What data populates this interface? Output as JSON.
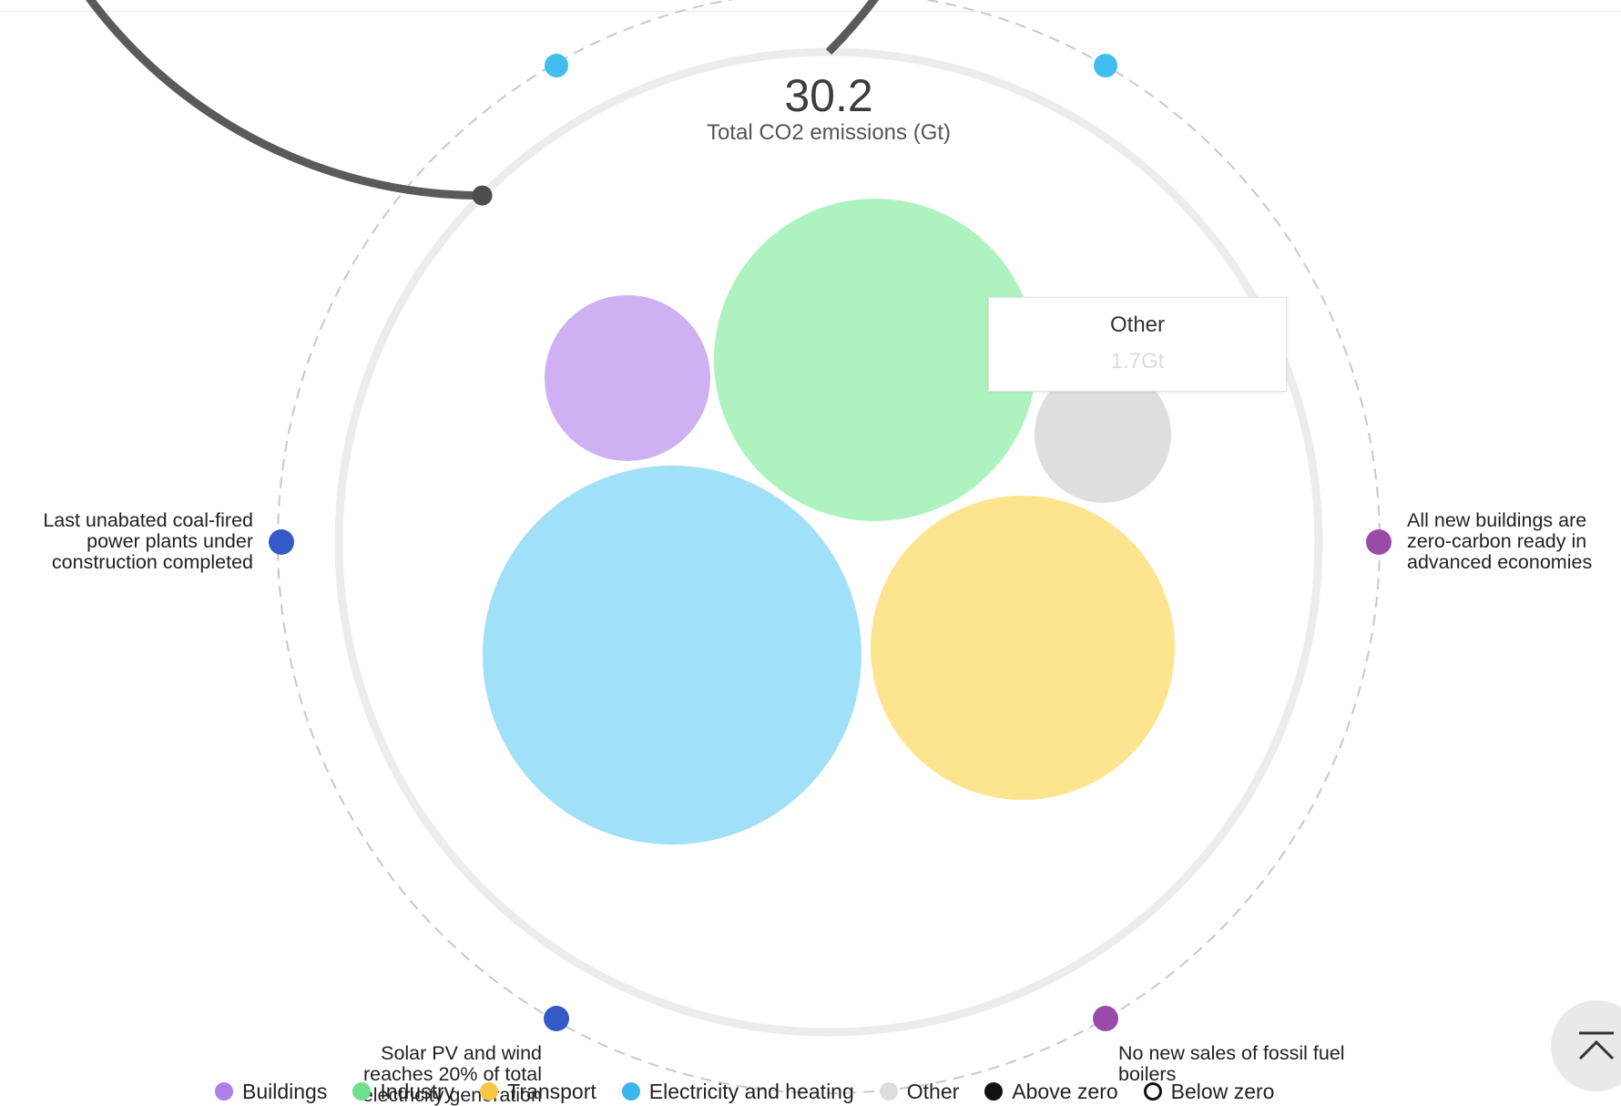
{
  "chart_data": {
    "type": "bubble",
    "total": {
      "value": "30.2",
      "label": "Total CO2 emissions (Gt)"
    },
    "progress_fraction": 0.875,
    "bubbles": [
      {
        "name": "Electricity and heating",
        "color": "#a0e0f8"
      },
      {
        "name": "Industry",
        "color": "#aef3bf"
      },
      {
        "name": "Transport",
        "color": "#fde48f"
      },
      {
        "name": "Buildings",
        "color": "#cfb0f3"
      },
      {
        "name": "Other",
        "color": "#dedede",
        "value_label": "1.7Gt"
      }
    ],
    "milestones": [
      {
        "text": "Last unabated coal-fired power plants under construction completed",
        "color": "#3559c6"
      },
      {
        "text": "All new buildings are zero-carbon ready in advanced economies",
        "color": "#9a4aa8"
      },
      {
        "text": "Solar PV and wind reaches 20% of total electricity generation",
        "color": "#3559c6"
      },
      {
        "text": "No new sales of fossil fuel boilers",
        "color": "#9a4aa8"
      }
    ],
    "marker_colors": {
      "top": "#42bdf0"
    },
    "tooltip": {
      "title": "Other",
      "value": "1.7Gt"
    },
    "legend": [
      {
        "label": "Buildings",
        "color": "#b07ee8",
        "style": "filled"
      },
      {
        "label": "Industry",
        "color": "#6fe08d",
        "style": "filled"
      },
      {
        "label": "Transport",
        "color": "#f7c744",
        "style": "filled"
      },
      {
        "label": "Electricity and heating",
        "color": "#3cb6ee",
        "style": "filled"
      },
      {
        "label": "Other",
        "color": "#dcdcdc",
        "style": "filled"
      },
      {
        "label": "Above zero",
        "color": "#111111",
        "style": "filled"
      },
      {
        "label": "Below zero",
        "color": "#111111",
        "style": "outline"
      }
    ]
  },
  "ui": {
    "scroll_top_icon": "chevron-up-icon"
  }
}
